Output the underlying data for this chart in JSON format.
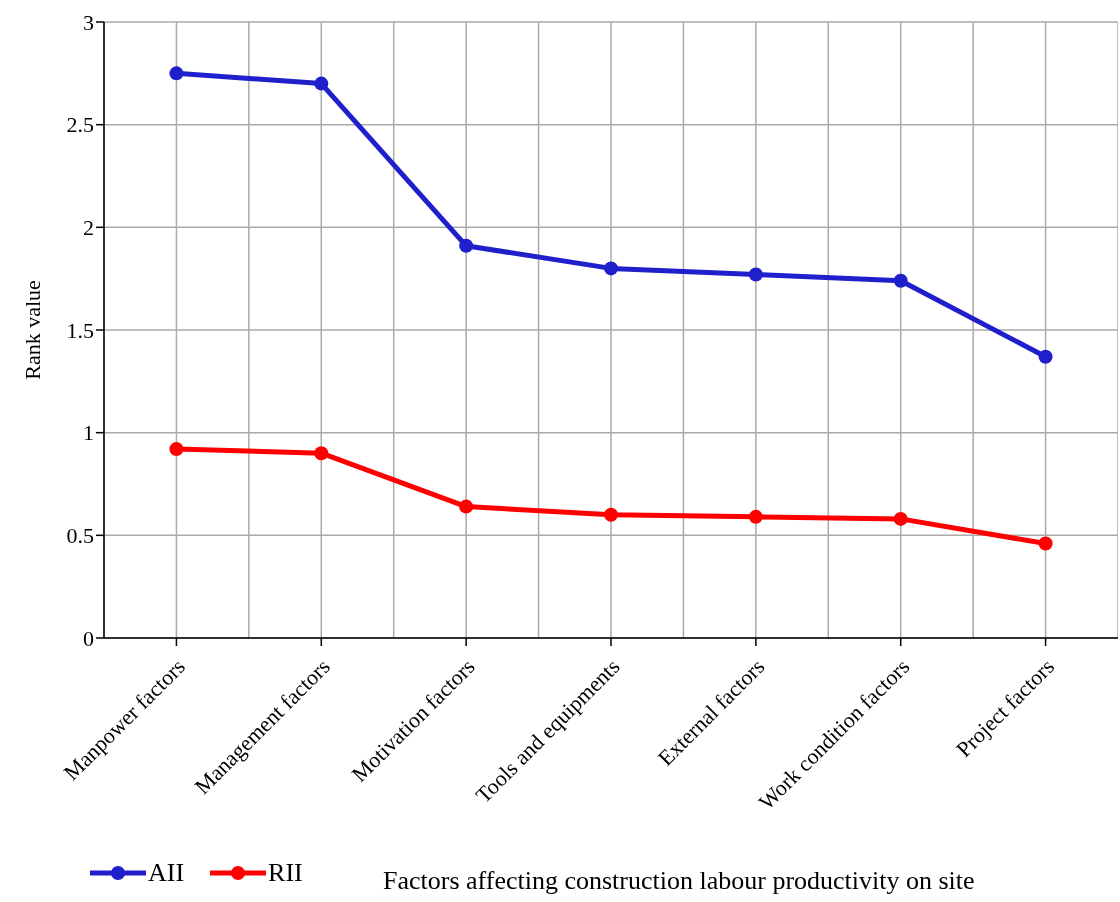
{
  "chart_data": {
    "type": "line",
    "ylabel": "Rank value",
    "xlabel": "Factors affecting construction labour productivity on site",
    "categories": [
      "Manpower factors",
      "Management factors",
      "Motivation factors",
      "Tools and equipments",
      "External factors",
      "Work condition factors",
      "Project factors"
    ],
    "series": [
      {
        "name": "AII",
        "color": "#1f1fcc",
        "values": [
          2.75,
          2.7,
          1.91,
          1.8,
          1.77,
          1.74,
          1.37
        ]
      },
      {
        "name": "RII",
        "color": "#ff0000",
        "values": [
          0.92,
          0.9,
          0.64,
          0.6,
          0.59,
          0.58,
          0.46
        ]
      }
    ],
    "ylim": [
      0,
      3
    ],
    "yticks": [
      0,
      0.5,
      1,
      1.5,
      2,
      2.5,
      3
    ],
    "grid": true,
    "legend": "bottom left",
    "marker": "circle",
    "line_style": "solid"
  }
}
